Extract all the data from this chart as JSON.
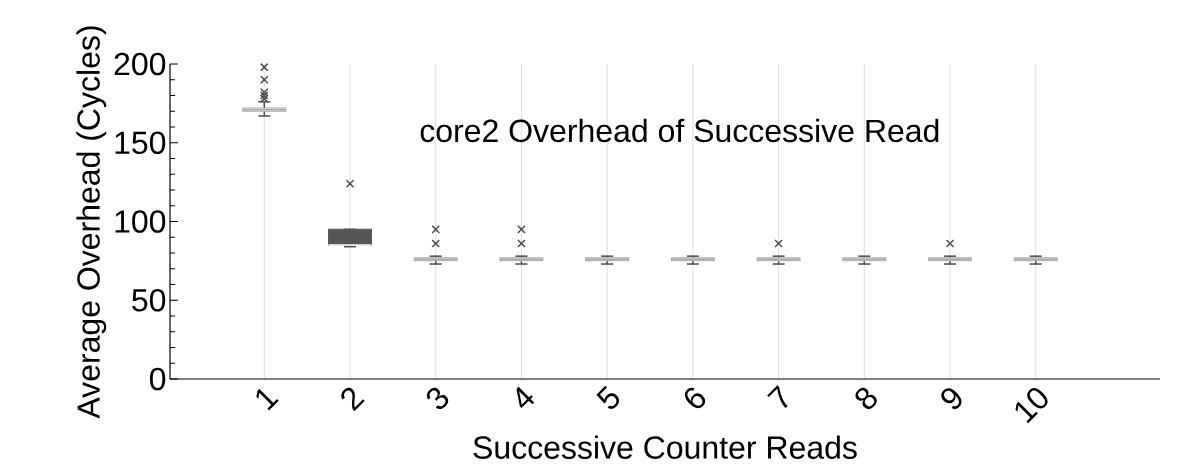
{
  "chart_data": {
    "type": "box",
    "title": "core2 Overhead of Successive Read",
    "xlabel": "Successive Counter Reads",
    "ylabel": "Average Overhead (Cycles)",
    "categories": [
      "1",
      "2",
      "3",
      "4",
      "5",
      "6",
      "7",
      "8",
      "9",
      "10"
    ],
    "boxes": [
      {
        "low": 167,
        "q1": 170,
        "median": 171,
        "q3": 172,
        "high": 176,
        "outliers": [
          178,
          180,
          182,
          190,
          198
        ]
      },
      {
        "low": 84,
        "q1": 85,
        "median": 85,
        "q3": 95,
        "high": 95,
        "outliers": [
          124
        ]
      },
      {
        "low": 73,
        "q1": 75,
        "median": 76,
        "q3": 77,
        "high": 78,
        "outliers": [
          86,
          95
        ]
      },
      {
        "low": 73,
        "q1": 75,
        "median": 76,
        "q3": 77,
        "high": 78,
        "outliers": [
          86,
          95
        ]
      },
      {
        "low": 73,
        "q1": 75,
        "median": 76,
        "q3": 77,
        "high": 78
      },
      {
        "low": 73,
        "q1": 75,
        "median": 76,
        "q3": 77,
        "high": 78
      },
      {
        "low": 73,
        "q1": 75,
        "median": 76,
        "q3": 77,
        "high": 78,
        "outliers": [
          86
        ]
      },
      {
        "low": 73,
        "q1": 75,
        "median": 76,
        "q3": 77,
        "high": 78
      },
      {
        "low": 73,
        "q1": 75,
        "median": 76,
        "q3": 77,
        "high": 78,
        "outliers": [
          86
        ]
      },
      {
        "low": 73,
        "q1": 75,
        "median": 76,
        "q3": 77,
        "high": 78
      }
    ],
    "colors": [
      "#ffffff",
      "#555555",
      "#ffffff",
      "#ffffff",
      "#ffffff",
      "#ffffff",
      "#ffffff",
      "#ffffff",
      "#ffffff",
      "#ffffff"
    ],
    "ylim": [
      0,
      200
    ],
    "yticks": [
      0,
      50,
      100,
      150,
      200
    ],
    "grid": "x",
    "marker": "cross"
  }
}
